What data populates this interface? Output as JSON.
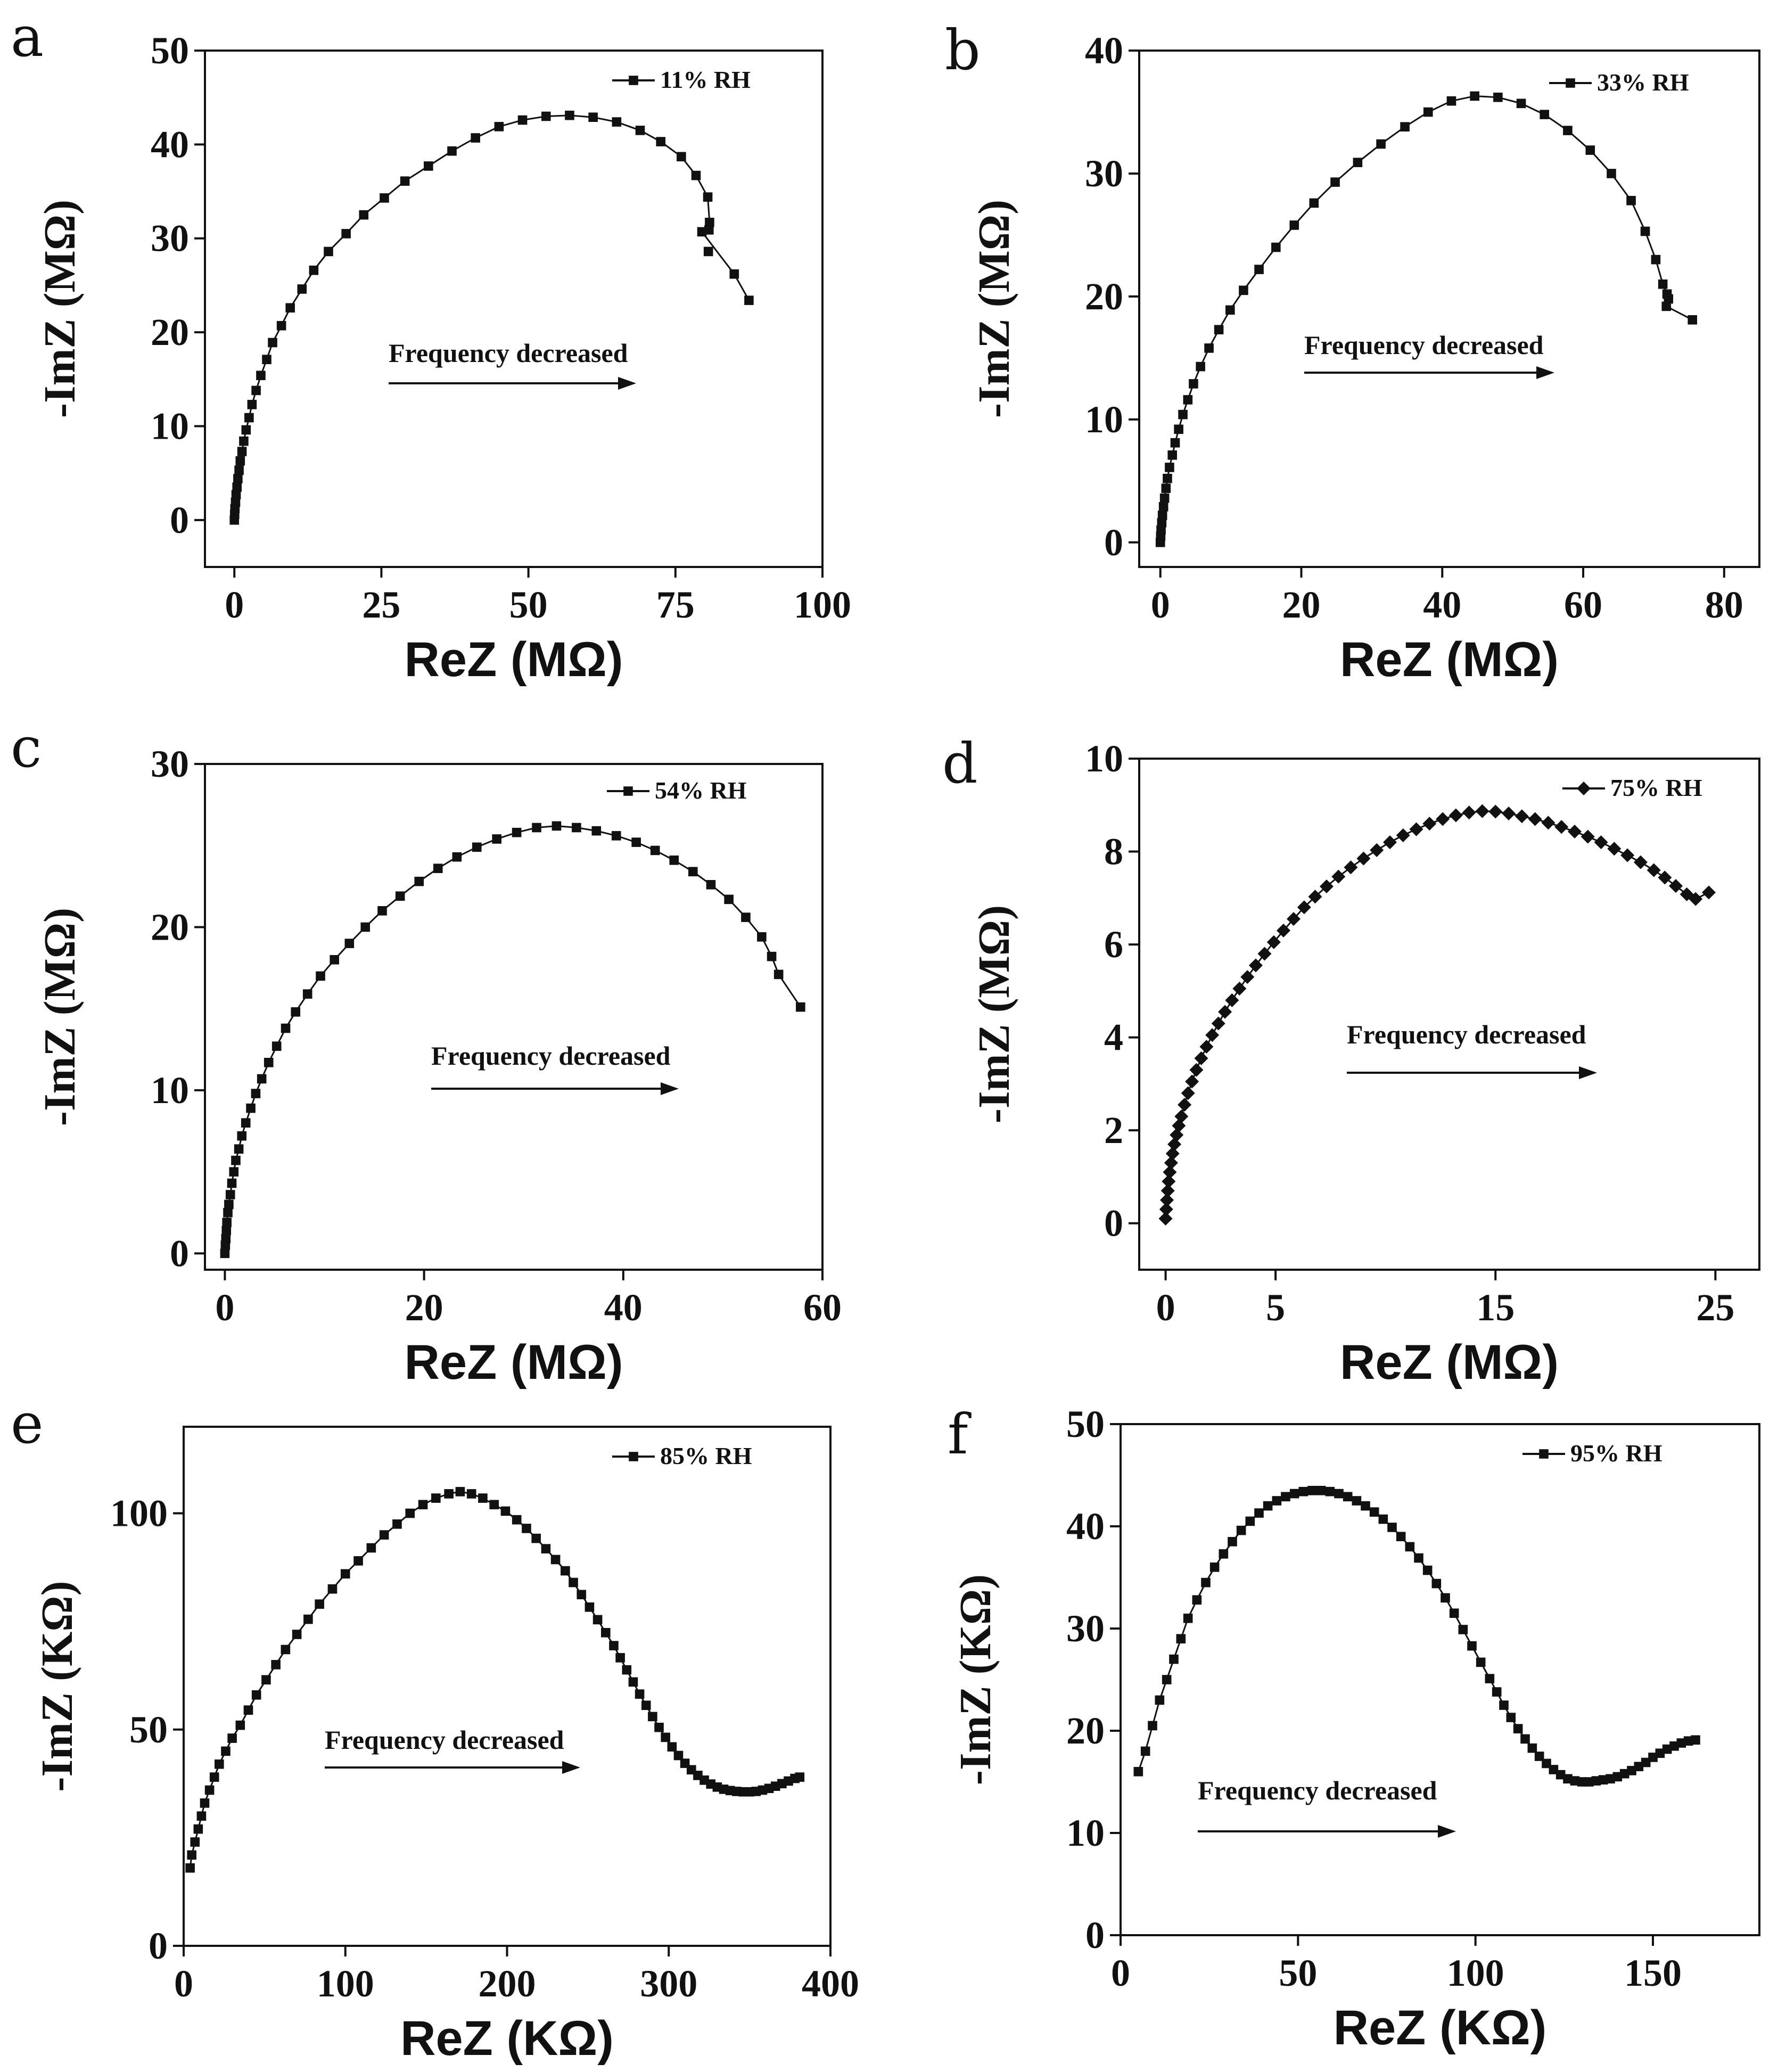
{
  "chart_data": [
    {
      "panel": "a",
      "type": "scatter",
      "xlabel": "ReZ (MΩ)",
      "ylabel": "-ImZ (MΩ)",
      "xlim": [
        -5,
        100
      ],
      "ylim": [
        -5,
        50
      ],
      "xticks": [
        0,
        25,
        50,
        75,
        100
      ],
      "yticks": [
        0,
        10,
        20,
        30,
        40,
        50
      ],
      "legend": "11% RH",
      "marker": "square",
      "annotation": "Frequency decreased",
      "x": [
        0.0,
        0.05,
        0.1,
        0.2,
        0.3,
        0.45,
        0.6,
        0.8,
        1.0,
        1.3,
        1.6,
        2.0,
        2.5,
        3.0,
        3.7,
        4.5,
        5.5,
        6.5,
        8.0,
        9.5,
        11.5,
        13.5,
        16.0,
        19.0,
        22.0,
        25.5,
        29.0,
        33.0,
        37.0,
        41.0,
        45.0,
        49.0,
        53.0,
        57.0,
        61.0,
        65.0,
        69.0,
        72.5,
        76.0,
        78.5,
        80.5,
        80.8,
        79.5,
        85.0,
        87.5
      ],
      "y": [
        0.0,
        0.6,
        1.2,
        1.9,
        2.7,
        3.5,
        4.4,
        5.3,
        6.3,
        7.3,
        8.4,
        9.6,
        10.9,
        12.3,
        13.8,
        15.4,
        17.1,
        18.9,
        20.7,
        22.6,
        24.6,
        26.6,
        28.6,
        30.5,
        32.5,
        34.3,
        36.1,
        37.7,
        39.3,
        40.7,
        41.9,
        42.6,
        43.0,
        43.1,
        42.9,
        42.4,
        41.5,
        40.3,
        38.7,
        36.7,
        34.4,
        31.7,
        30.7,
        26.2,
        23.4
      ],
      "x_extra_pts": [
        80.6,
        80.7
      ],
      "y_extra_pts": [
        28.6,
        30.9
      ]
    },
    {
      "panel": "b",
      "type": "scatter",
      "xlabel": "ReZ (MΩ)",
      "ylabel": "-ImZ (MΩ)",
      "xlim": [
        -3,
        85
      ],
      "ylim": [
        -2,
        40
      ],
      "xticks": [
        0,
        20,
        40,
        60,
        80
      ],
      "yticks": [
        0,
        10,
        20,
        30,
        40
      ],
      "legend": "33% RH",
      "marker": "square",
      "annotation": "Frequency decreased",
      "x": [
        0.0,
        0.05,
        0.1,
        0.2,
        0.3,
        0.45,
        0.6,
        0.8,
        1.0,
        1.3,
        1.7,
        2.1,
        2.6,
        3.2,
        3.9,
        4.7,
        5.7,
        6.9,
        8.3,
        9.9,
        11.8,
        14.0,
        16.4,
        19.0,
        21.8,
        24.8,
        28.0,
        31.3,
        34.7,
        38.0,
        41.3,
        44.6,
        47.9,
        51.2,
        54.5,
        57.8,
        61.0,
        64.0,
        66.8,
        68.8,
        70.3,
        71.3,
        71.9,
        72.1,
        71.8,
        75.5
      ],
      "y": [
        0.0,
        0.5,
        1.0,
        1.6,
        2.2,
        2.9,
        3.6,
        4.4,
        5.2,
        6.1,
        7.1,
        8.1,
        9.2,
        10.4,
        11.6,
        12.9,
        14.3,
        15.8,
        17.3,
        18.9,
        20.5,
        22.2,
        24.0,
        25.8,
        27.6,
        29.3,
        30.9,
        32.4,
        33.8,
        35.0,
        35.9,
        36.3,
        36.2,
        35.7,
        34.8,
        33.5,
        31.9,
        30.0,
        27.8,
        25.3,
        23.0,
        21.0,
        20.2,
        19.8,
        19.2,
        18.1
      ]
    },
    {
      "panel": "c",
      "type": "scatter",
      "xlabel": "ReZ (MΩ)",
      "ylabel": "-ImZ (MΩ)",
      "xlim": [
        -2,
        60
      ],
      "ylim": [
        -1,
        30
      ],
      "xticks": [
        0,
        20,
        40,
        60
      ],
      "yticks": [
        0,
        10,
        20,
        30
      ],
      "legend": "54% RH",
      "marker": "square",
      "annotation": "Frequency decreased",
      "x": [
        0.0,
        0.05,
        0.1,
        0.15,
        0.2,
        0.3,
        0.4,
        0.55,
        0.7,
        0.9,
        1.1,
        1.4,
        1.7,
        2.1,
        2.6,
        3.1,
        3.7,
        4.4,
        5.2,
        6.1,
        7.1,
        8.3,
        9.6,
        11.0,
        12.5,
        14.1,
        15.8,
        17.6,
        19.5,
        21.4,
        23.3,
        25.3,
        27.3,
        29.3,
        31.3,
        33.3,
        35.3,
        37.3,
        39.3,
        41.3,
        43.2,
        45.1,
        47.0,
        48.8,
        50.6,
        52.3,
        53.9,
        54.9,
        55.6,
        57.8
      ],
      "y": [
        0.0,
        0.5,
        0.9,
        1.4,
        1.9,
        2.5,
        3.0,
        3.6,
        4.3,
        5.0,
        5.7,
        6.4,
        7.2,
        8.0,
        8.9,
        9.8,
        10.7,
        11.7,
        12.7,
        13.8,
        14.8,
        15.9,
        17.0,
        18.0,
        19.0,
        20.0,
        21.0,
        21.9,
        22.8,
        23.6,
        24.3,
        24.9,
        25.4,
        25.8,
        26.1,
        26.2,
        26.1,
        25.9,
        25.6,
        25.2,
        24.7,
        24.1,
        23.4,
        22.6,
        21.7,
        20.6,
        19.4,
        18.2,
        17.1,
        15.1
      ]
    },
    {
      "panel": "d",
      "type": "scatter",
      "xlabel": "ReZ (MΩ)",
      "ylabel": "-ImZ (MΩ)",
      "xlim": [
        -1.2,
        27
      ],
      "ylim": [
        -1,
        10
      ],
      "xticks": [
        0,
        5,
        15,
        25
      ],
      "yticks": [
        0,
        2,
        4,
        6,
        8,
        10
      ],
      "legend": "75% RH",
      "marker": "diamond",
      "annotation": "Frequency decreased",
      "x": [
        0.0,
        0.03,
        0.06,
        0.1,
        0.14,
        0.19,
        0.25,
        0.32,
        0.4,
        0.5,
        0.6,
        0.72,
        0.86,
        1.02,
        1.2,
        1.4,
        1.62,
        1.86,
        2.12,
        2.4,
        2.7,
        3.02,
        3.36,
        3.72,
        4.1,
        4.5,
        4.92,
        5.36,
        5.82,
        6.3,
        6.8,
        7.32,
        7.86,
        8.42,
        9.0,
        9.6,
        10.2,
        10.8,
        11.4,
        12.0,
        12.6,
        13.2,
        13.8,
        14.4,
        15.0,
        15.6,
        16.2,
        16.8,
        17.4,
        18.0,
        18.6,
        19.2,
        19.8,
        20.4,
        21.0,
        21.6,
        22.2,
        22.7,
        23.2,
        23.7,
        24.1,
        24.7
      ],
      "y": [
        0.1,
        0.3,
        0.5,
        0.7,
        0.9,
        1.1,
        1.3,
        1.5,
        1.7,
        1.9,
        2.1,
        2.3,
        2.55,
        2.8,
        3.05,
        3.3,
        3.55,
        3.8,
        4.05,
        4.3,
        4.55,
        4.8,
        5.05,
        5.3,
        5.55,
        5.8,
        6.05,
        6.3,
        6.55,
        6.8,
        7.03,
        7.25,
        7.46,
        7.66,
        7.85,
        8.03,
        8.2,
        8.35,
        8.48,
        8.6,
        8.7,
        8.78,
        8.84,
        8.87,
        8.86,
        8.82,
        8.76,
        8.7,
        8.62,
        8.53,
        8.43,
        8.32,
        8.2,
        8.06,
        7.92,
        7.77,
        7.6,
        7.44,
        7.26,
        7.08,
        6.98,
        7.12
      ]
    },
    {
      "panel": "e",
      "type": "scatter",
      "xlabel": "ReZ (KΩ)",
      "ylabel": "-ImZ (KΩ)",
      "xlim": [
        0,
        400
      ],
      "ylim": [
        0,
        120
      ],
      "xticks": [
        0,
        100,
        200,
        300,
        400
      ],
      "yticks": [
        0,
        50,
        100
      ],
      "legend": "85% RH",
      "marker": "square",
      "annotation": "Frequency decreased",
      "x": [
        4,
        5,
        7,
        9,
        11,
        13,
        16,
        19,
        22,
        26,
        30,
        35,
        40,
        45,
        51,
        57,
        63,
        70,
        77,
        84,
        92,
        100,
        108,
        116,
        124,
        132,
        140,
        148,
        156,
        164,
        171,
        178,
        185,
        192,
        199,
        206,
        212,
        218,
        224,
        230,
        236,
        241,
        246,
        251,
        256,
        261,
        266,
        270,
        274,
        278,
        282,
        286,
        290,
        294,
        298,
        302,
        306,
        310,
        314,
        318,
        322,
        326,
        330,
        334,
        338,
        342,
        346,
        350,
        354,
        358,
        362,
        366,
        370,
        374,
        378,
        381
      ],
      "y": [
        18,
        21,
        24,
        27,
        30,
        33,
        36,
        39,
        42,
        45,
        48,
        51,
        54.5,
        58,
        61.5,
        65,
        68.5,
        72,
        75.5,
        79,
        82.5,
        86,
        89,
        92,
        95,
        97.5,
        100,
        102,
        103.5,
        104.5,
        105,
        104.5,
        103.5,
        102,
        100.5,
        98.5,
        96.5,
        94.2,
        91.8,
        89.3,
        86.7,
        84,
        81.2,
        78.3,
        75.4,
        72.4,
        69.4,
        66.6,
        63.8,
        61,
        58.2,
        55.6,
        53,
        50.5,
        48.2,
        46,
        44,
        42.2,
        40.7,
        39.4,
        38.3,
        37.4,
        36.7,
        36.2,
        35.9,
        35.7,
        35.6,
        35.6,
        35.7,
        36,
        36.4,
        36.9,
        37.5,
        38.1,
        38.7,
        39
      ]
    },
    {
      "panel": "f",
      "type": "scatter",
      "xlabel": "ReZ (KΩ)",
      "ylabel": "-ImZ (KΩ)",
      "xlim": [
        0,
        180
      ],
      "ylim": [
        0,
        50
      ],
      "xticks": [
        0,
        50,
        100,
        150
      ],
      "yticks": [
        0,
        10,
        20,
        30,
        40,
        50
      ],
      "legend": "95% RH",
      "marker": "square",
      "annotation": "Frequency decreased",
      "x": [
        5,
        7,
        9,
        11,
        13,
        15,
        17,
        19,
        21.5,
        24,
        26.5,
        29,
        31.5,
        34,
        36.5,
        39,
        41.5,
        44,
        46.5,
        49,
        51.5,
        54,
        56.5,
        59,
        61.5,
        64,
        66.5,
        69,
        71.5,
        74,
        76.5,
        79,
        81.5,
        84,
        86.5,
        89,
        91.5,
        94,
        96.5,
        99,
        101.5,
        104,
        106,
        108,
        110,
        112,
        114,
        116,
        118,
        120,
        122,
        124,
        126,
        128,
        130,
        132,
        134,
        136,
        138,
        140,
        142,
        144,
        146,
        148,
        150,
        152,
        154,
        156,
        158,
        160,
        162
      ],
      "y": [
        16,
        18,
        20.5,
        23,
        25,
        27,
        29,
        31,
        32.8,
        34.5,
        36,
        37.3,
        38.5,
        39.6,
        40.5,
        41.3,
        42,
        42.5,
        42.9,
        43.2,
        43.4,
        43.5,
        43.5,
        43.4,
        43.2,
        42.9,
        42.5,
        42,
        41.4,
        40.7,
        39.9,
        39,
        38,
        36.9,
        35.7,
        34.4,
        33,
        31.5,
        29.9,
        28.3,
        26.7,
        25.1,
        23.8,
        22.5,
        21.3,
        20.2,
        19.2,
        18.3,
        17.5,
        16.8,
        16.2,
        15.7,
        15.3,
        15.1,
        15,
        15,
        15.1,
        15.2,
        15.3,
        15.5,
        15.8,
        16.1,
        16.5,
        16.9,
        17.4,
        17.8,
        18.2,
        18.5,
        18.8,
        19,
        19.1
      ]
    }
  ]
}
